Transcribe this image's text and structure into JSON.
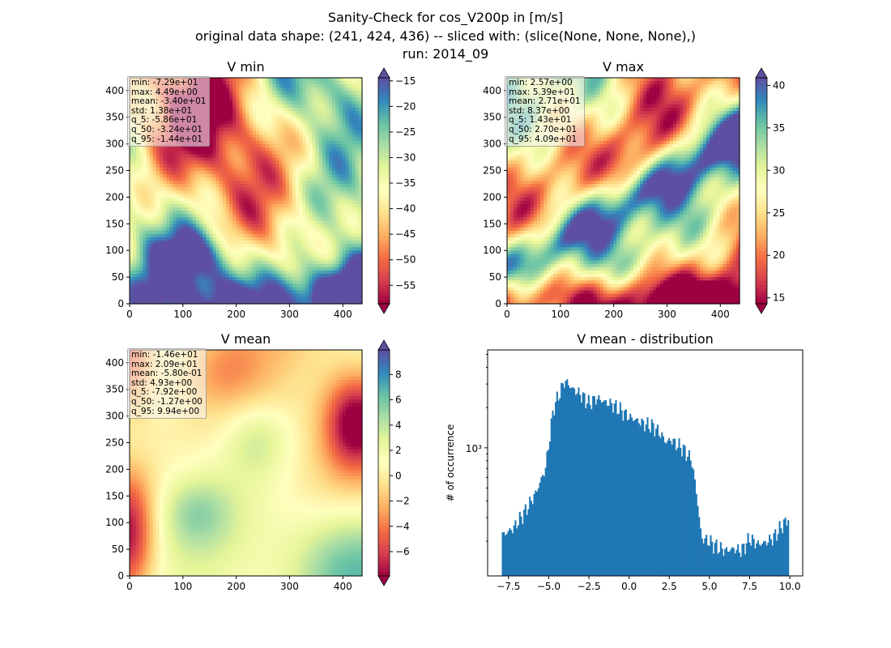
{
  "figure": {
    "title_lines": [
      "Sanity-Check for cos_V200p in [m/s]",
      "original data shape: (241, 424, 436) -- sliced with: (slice(None, None, None),)",
      "run: 2014_09"
    ]
  },
  "chart_data": [
    {
      "type": "heatmap",
      "title": "V min",
      "x_ticks": [
        0,
        100,
        200,
        300,
        400
      ],
      "y_ticks": [
        0,
        50,
        100,
        150,
        200,
        250,
        300,
        350,
        400
      ],
      "xlim": [
        0,
        436
      ],
      "ylim": [
        0,
        424
      ],
      "colormap": "Spectral",
      "colorbar": {
        "ticks": [
          -55,
          -50,
          -45,
          -40,
          -35,
          -30,
          -25,
          -20,
          -15
        ],
        "range": [
          -58.6,
          -14.4
        ],
        "extend": "both"
      },
      "stats": [
        "min: -7.29e+01",
        "max: 4.49e+00",
        "mean: -3.40e+01",
        "std: 1.38e+01",
        "q_5: -5.86e+01",
        "q_50: -3.24e+01",
        "q_95: -1.44e+01"
      ]
    },
    {
      "type": "heatmap",
      "title": "V max",
      "x_ticks": [
        0,
        100,
        200,
        300,
        400
      ],
      "y_ticks": [
        0,
        50,
        100,
        150,
        200,
        250,
        300,
        350,
        400
      ],
      "xlim": [
        0,
        436
      ],
      "ylim": [
        0,
        424
      ],
      "colormap": "Spectral",
      "colorbar": {
        "ticks": [
          15,
          20,
          25,
          30,
          35,
          40
        ],
        "range": [
          14.3,
          40.9
        ],
        "extend": "both"
      },
      "stats": [
        "min: 2.57e+00",
        "max: 5.39e+01",
        "mean: 2.71e+01",
        "std: 8.37e+00",
        "q_5: 1.43e+01",
        "q_50: 2.70e+01",
        "q_95: 4.09e+01"
      ]
    },
    {
      "type": "heatmap",
      "title": "V mean",
      "x_ticks": [
        0,
        100,
        200,
        300,
        400
      ],
      "y_ticks": [
        0,
        50,
        100,
        150,
        200,
        250,
        300,
        350,
        400
      ],
      "xlim": [
        0,
        436
      ],
      "ylim": [
        0,
        424
      ],
      "colormap": "Spectral",
      "colorbar": {
        "ticks": [
          -6,
          -4,
          -2,
          0,
          2,
          4,
          6,
          8
        ],
        "range": [
          -7.92,
          9.94
        ],
        "extend": "both"
      },
      "stats": [
        "min: -1.46e+01",
        "max: 2.09e+01",
        "mean: -5.80e-01",
        "std: 4.93e+00",
        "q_5: -7.92e+00",
        "q_50: -1.27e+00",
        "q_95: 9.94e+00"
      ]
    },
    {
      "type": "bar",
      "title": "V mean - distribution",
      "ylabel": "# of occurrence",
      "y_scale": "log",
      "y_tick_label": "10³",
      "y_tick_value": 1000,
      "ylim": [
        110,
        5400
      ],
      "xlim": [
        -8.8,
        10.8
      ],
      "x_ticks": [
        -7.5,
        -5.0,
        -2.5,
        0.0,
        2.5,
        5.0,
        7.5,
        10.0
      ],
      "x_tick_labels": [
        "−7.5",
        "−5.0",
        "−2.5",
        "0.0",
        "2.5",
        "5.0",
        "7.5",
        "10.0"
      ],
      "bin_range": [
        -7.92,
        9.94
      ],
      "bar_color": "#1f77b4",
      "anchor_x": [
        -7.92,
        -7.2,
        -6.5,
        -5.8,
        -5.2,
        -4.7,
        -4.3,
        -4.0,
        -3.5,
        -3.0,
        -2.5,
        -2.0,
        -1.5,
        -1.0,
        -0.5,
        0.0,
        0.5,
        1.0,
        1.5,
        2.0,
        2.3,
        2.6,
        3.0,
        3.3,
        3.6,
        3.9,
        4.2,
        4.5,
        5.0,
        5.5,
        6.0,
        6.5,
        7.0,
        7.5,
        8.0,
        8.5,
        9.0,
        9.5,
        9.94
      ],
      "anchor_y": [
        220,
        250,
        330,
        460,
        700,
        2000,
        2600,
        3200,
        2750,
        2500,
        2150,
        2350,
        2200,
        2100,
        1900,
        1700,
        1600,
        1500,
        1450,
        1250,
        1100,
        1150,
        1050,
        1000,
        900,
        800,
        450,
        210,
        200,
        180,
        170,
        175,
        170,
        210,
        190,
        195,
        215,
        260,
        300
      ]
    }
  ]
}
